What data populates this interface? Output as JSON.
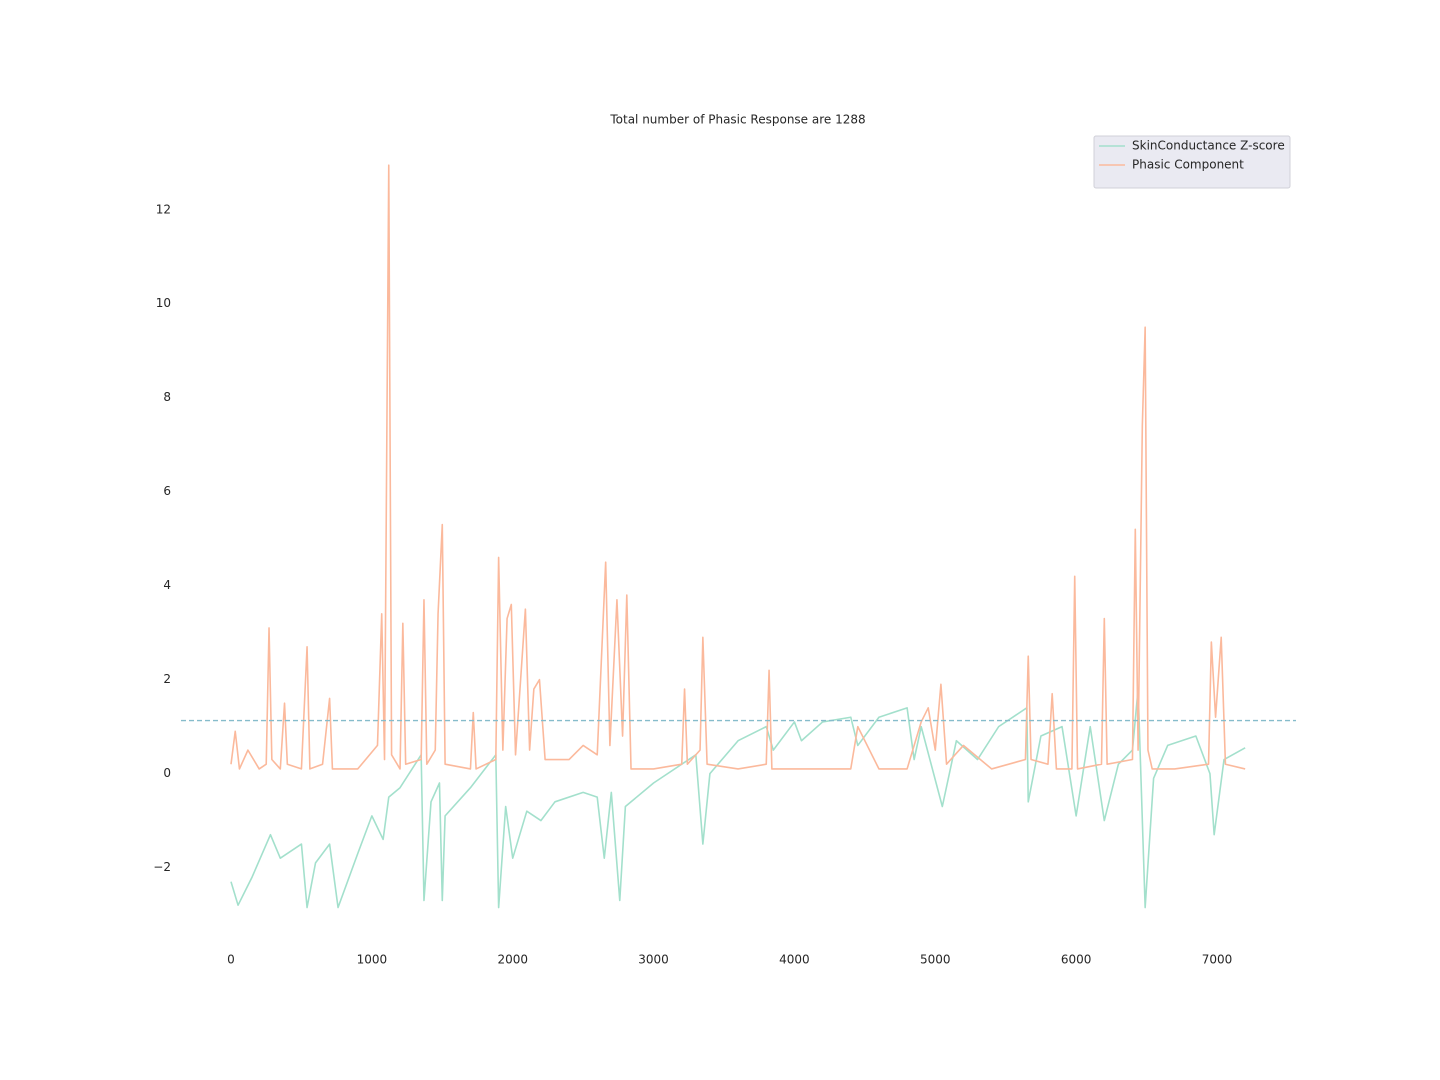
{
  "chart_data": {
    "type": "line",
    "title": "Total number of Phasic Response are 1288",
    "xlim": [
      -355,
      7561
    ],
    "ylim": [
      -3.69,
      13.74
    ],
    "xticks": [
      0,
      1000,
      2000,
      3000,
      4000,
      5000,
      6000,
      7000
    ],
    "yticks": [
      {
        "value": -2,
        "label": "−2"
      },
      0,
      2,
      4,
      6,
      8,
      10,
      12
    ],
    "grid": false,
    "legend": "upper right",
    "hline": {
      "value": 1.13,
      "color": "#86bccb",
      "dashed": true
    },
    "series": [
      {
        "name": "SkinConductance Z-score",
        "color": "#a3e0cc",
        "x": [
          0,
          50,
          150,
          280,
          350,
          500,
          540,
          600,
          700,
          760,
          900,
          1000,
          1080,
          1120,
          1200,
          1350,
          1370,
          1420,
          1480,
          1500,
          1520,
          1700,
          1880,
          1900,
          1950,
          2000,
          2100,
          2200,
          2300,
          2500,
          2600,
          2650,
          2700,
          2760,
          2800,
          3000,
          3300,
          3350,
          3400,
          3600,
          3800,
          3850,
          4000,
          4050,
          4200,
          4400,
          4450,
          4600,
          4800,
          4850,
          4900,
          5050,
          5150,
          5300,
          5450,
          5650,
          5660,
          5750,
          5900,
          6000,
          6100,
          6200,
          6300,
          6400,
          6440,
          6490,
          6550,
          6650,
          6850,
          6950,
          6980,
          7050,
          7200
        ],
        "values": [
          -2.3,
          -2.8,
          -2.2,
          -1.3,
          -1.8,
          -1.5,
          -2.85,
          -1.9,
          -1.5,
          -2.85,
          -1.7,
          -0.9,
          -1.4,
          -0.5,
          -0.3,
          0.4,
          -2.7,
          -0.6,
          -0.2,
          -2.7,
          -0.9,
          -0.3,
          0.4,
          -2.85,
          -0.7,
          -1.8,
          -0.8,
          -1.0,
          -0.6,
          -0.4,
          -0.5,
          -1.8,
          -0.4,
          -2.7,
          -0.7,
          -0.2,
          0.4,
          -1.5,
          0,
          0.7,
          1.0,
          0.5,
          1.1,
          0.7,
          1.1,
          1.2,
          0.6,
          1.2,
          1.4,
          0.3,
          1.0,
          -0.7,
          0.7,
          0.3,
          1.0,
          1.4,
          -0.6,
          0.8,
          1.0,
          -0.9,
          1.0,
          -1.0,
          0.2,
          0.5,
          1.8,
          -2.85,
          -0.1,
          0.6,
          0.8,
          0.0,
          -1.3,
          0.3,
          0.55
        ]
      },
      {
        "name": "Phasic Component",
        "color": "#fbb99c",
        "x": [
          0,
          30,
          60,
          120,
          200,
          250,
          270,
          290,
          350,
          380,
          400,
          500,
          540,
          560,
          650,
          700,
          720,
          900,
          1040,
          1070,
          1090,
          1120,
          1140,
          1200,
          1220,
          1240,
          1350,
          1370,
          1390,
          1450,
          1470,
          1500,
          1520,
          1700,
          1720,
          1740,
          1880,
          1900,
          1930,
          1960,
          1990,
          2020,
          2090,
          2120,
          2150,
          2190,
          2230,
          2400,
          2500,
          2600,
          2660,
          2690,
          2740,
          2780,
          2810,
          2840,
          3000,
          3200,
          3220,
          3240,
          3330,
          3350,
          3380,
          3600,
          3800,
          3820,
          3840,
          4000,
          4200,
          4400,
          4450,
          4600,
          4800,
          4900,
          4950,
          5000,
          5040,
          5080,
          5200,
          5400,
          5640,
          5660,
          5680,
          5800,
          5830,
          5860,
          5970,
          5990,
          6010,
          6180,
          6200,
          6220,
          6400,
          6420,
          6440,
          6470,
          6490,
          6510,
          6540,
          6700,
          6940,
          6960,
          6990,
          7030,
          7060,
          7200
        ],
        "values": [
          0.2,
          0.9,
          0.1,
          0.5,
          0.1,
          0.2,
          3.1,
          0.3,
          0.1,
          1.5,
          0.2,
          0.1,
          2.7,
          0.1,
          0.2,
          1.6,
          0.1,
          0.1,
          0.6,
          3.4,
          0.3,
          12.95,
          0.4,
          0.1,
          3.2,
          0.2,
          0.3,
          3.7,
          0.2,
          0.5,
          3.4,
          5.3,
          0.2,
          0.1,
          1.3,
          0.1,
          0.3,
          4.6,
          0.5,
          3.3,
          3.6,
          0.4,
          3.5,
          0.5,
          1.8,
          2.0,
          0.3,
          0.3,
          0.6,
          0.4,
          4.5,
          0.6,
          3.7,
          0.8,
          3.8,
          0.1,
          0.1,
          0.2,
          1.8,
          0.2,
          0.5,
          2.9,
          0.2,
          0.1,
          0.2,
          2.2,
          0.1,
          0.1,
          0.1,
          0.1,
          1.0,
          0.1,
          0.1,
          1.1,
          1.4,
          0.5,
          1.9,
          0.2,
          0.6,
          0.1,
          0.3,
          2.5,
          0.3,
          0.2,
          1.7,
          0.1,
          0.1,
          4.2,
          0.1,
          0.2,
          3.3,
          0.2,
          0.3,
          5.2,
          0.5,
          7.4,
          9.5,
          0.5,
          0.1,
          0.1,
          0.2,
          2.8,
          1.2,
          2.9,
          0.2,
          0.1
        ]
      }
    ]
  }
}
